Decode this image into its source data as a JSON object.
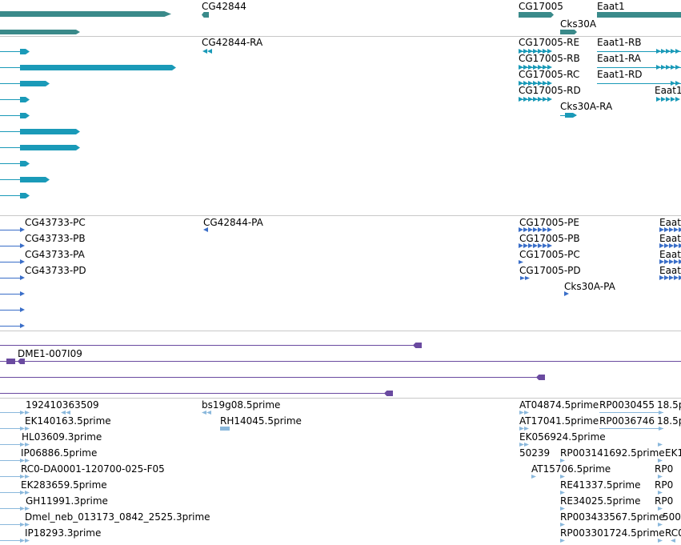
{
  "tracks": [
    {
      "id": "genes",
      "color": "#3a8a8a",
      "labels": [
        "CG42844",
        "CG17005",
        "Eaat1",
        "Cks30A"
      ]
    },
    {
      "id": "transcripts",
      "color": "#1a9ab8",
      "labels": [
        "CG42844-RA",
        "CG17005-RE",
        "Eaat1-RB",
        "CG17005-RB",
        "Eaat1-RA",
        "CG17005-RC",
        "Eaat1-RD",
        "CG17005-RD",
        "Eaat1",
        "Cks30A-RA"
      ]
    },
    {
      "id": "proteins",
      "color": "#3a6ec8",
      "labels": [
        "CG43733-PC",
        "CG42844-PA",
        "CG17005-PE",
        "Eaat",
        "CG43733-PB",
        "CG17005-PB",
        "Eaat",
        "CG43733-PA",
        "CG17005-PC",
        "Eaat",
        "CG43733-PD",
        "CG17005-PD",
        "Eaat",
        "Cks30A-PA"
      ]
    },
    {
      "id": "clones",
      "color": "#6a4aa0",
      "labels": [
        "DME1-007I09"
      ]
    },
    {
      "id": "ests",
      "color": "#8ab8dc",
      "labels": [
        "192410363509",
        "bs19g08.5prime",
        "AT04874.5prime",
        "RP0030455",
        "18.5p",
        "EK140163.5prime",
        "RH14045.5prime",
        "AT17041.5prime",
        "RP0036746",
        "18.5p",
        "HL03609.3prime",
        "EK056924.5prime",
        "IP06886.5prime",
        "50239",
        "RP003141692.5prime",
        "EK1",
        "RC0-DA0001-120700-025-F05",
        "AT15706.5prime",
        "RP0",
        "EK283659.5prime",
        "RE41337.5prime",
        "RP0",
        "GH11991.3prime",
        "RE34025.5prime",
        "RP0",
        "Dmel_neb_013173_0842_2525.3prime",
        "RP003433567.5prime",
        "500",
        "IP18293.3prime",
        "RP003301724.5prime",
        "RC0"
      ]
    }
  ]
}
